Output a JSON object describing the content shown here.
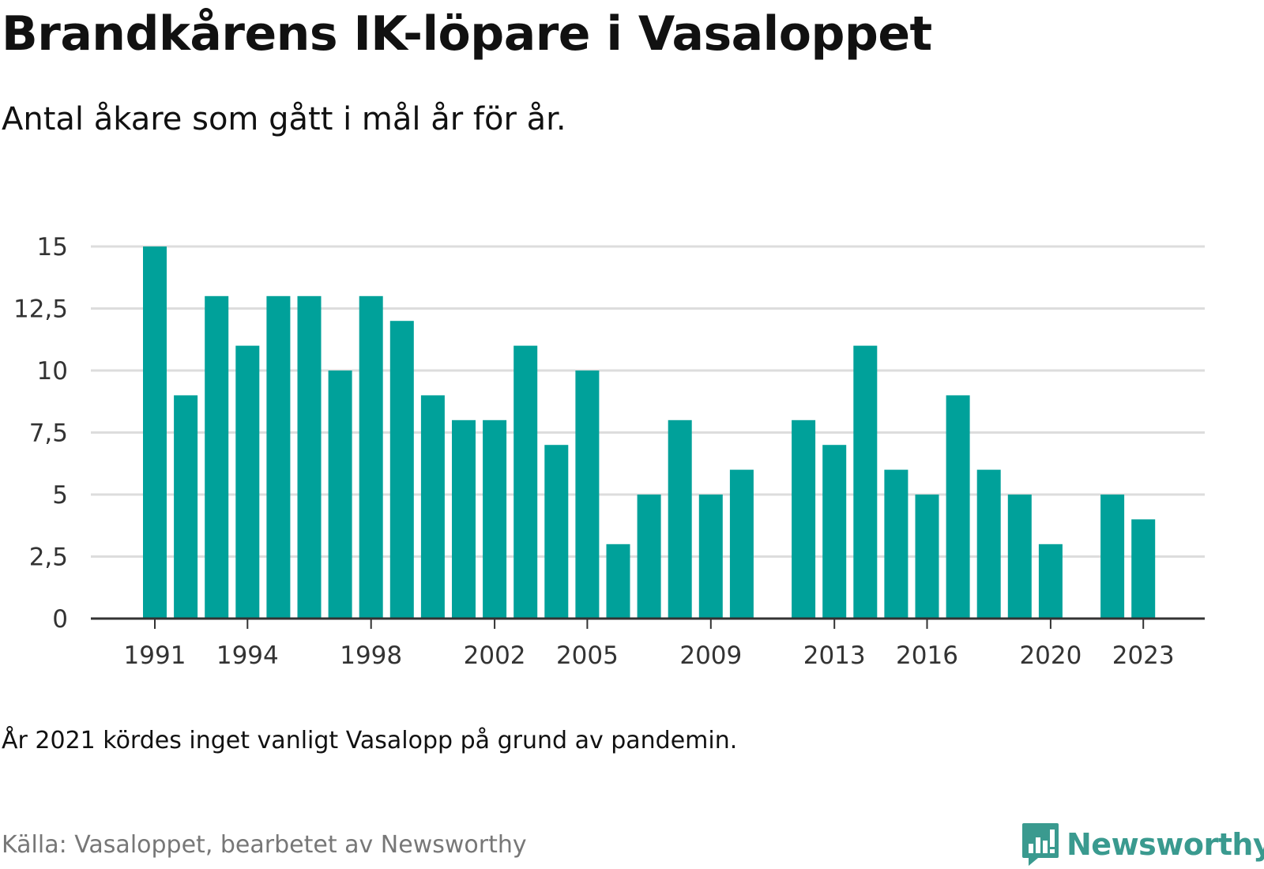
{
  "colors": {
    "bar": "#00a19a",
    "grid": "#dddddd",
    "axis": "#333333",
    "logo": "#3a9a8f"
  },
  "brand": {
    "name": "Newsworthy",
    "icon": "chart-badge-icon"
  },
  "footnote": "År 2021 kördes inget vanligt Vasalopp på grund av pandemin.",
  "source": "Källa: Vasaloppet, bearbetet av Newsworthy",
  "chart_data": {
    "type": "bar",
    "title": "Brandkårens IK-löpare i Vasaloppet",
    "subtitle": "Antal åkare som gått i mål år för år.",
    "xlabel": "",
    "ylabel": "",
    "ylim": [
      0,
      15
    ],
    "grid": true,
    "y_ticks": [
      0,
      2.5,
      5,
      7.5,
      10,
      12.5,
      15
    ],
    "y_tick_labels": [
      "0",
      "2,5",
      "5",
      "7,5",
      "10",
      "12,5",
      "15"
    ],
    "x_tick_labels": [
      "1991",
      "1994",
      "1998",
      "2002",
      "2005",
      "2009",
      "2013",
      "2016",
      "2020",
      "2023"
    ],
    "categories": [
      1991,
      1992,
      1993,
      1994,
      1995,
      1996,
      1997,
      1998,
      1999,
      2000,
      2001,
      2002,
      2003,
      2004,
      2005,
      2006,
      2007,
      2008,
      2009,
      2010,
      2011,
      2012,
      2013,
      2014,
      2015,
      2016,
      2017,
      2018,
      2019,
      2020,
      2021,
      2022,
      2023,
      2024
    ],
    "values": [
      15,
      9,
      13,
      11,
      13,
      13,
      10,
      13,
      12,
      9,
      8,
      8,
      11,
      7,
      10,
      3,
      5,
      8,
      5,
      6,
      0,
      8,
      7,
      11,
      6,
      5,
      9,
      6,
      5,
      3,
      0,
      5,
      4,
      0
    ]
  }
}
